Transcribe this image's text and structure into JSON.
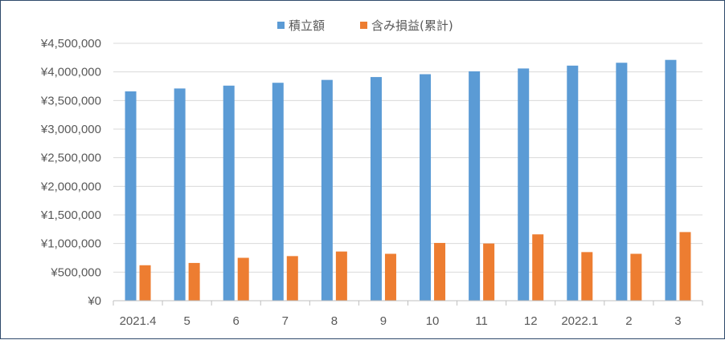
{
  "chart_data": {
    "type": "bar",
    "categories": [
      "2021.4",
      "5",
      "6",
      "7",
      "8",
      "9",
      "10",
      "11",
      "12",
      "2022.1",
      "2",
      "3"
    ],
    "series": [
      {
        "name": "積立額",
        "color": "#5b9bd5",
        "values": [
          3660000,
          3710000,
          3760000,
          3810000,
          3860000,
          3910000,
          3960000,
          4010000,
          4060000,
          4110000,
          4160000,
          4210000
        ]
      },
      {
        "name": "含み損益(累計)",
        "color": "#ed7d31",
        "values": [
          620000,
          660000,
          750000,
          780000,
          860000,
          820000,
          1010000,
          1000000,
          1160000,
          850000,
          820000,
          1200000
        ]
      }
    ],
    "yticks": [
      "¥0",
      "¥500,000",
      "¥1,000,000",
      "¥1,500,000",
      "¥2,000,000",
      "¥2,500,000",
      "¥3,000,000",
      "¥3,500,000",
      "¥4,000,000",
      "¥4,500,000"
    ],
    "ylim": [
      0,
      4500000
    ],
    "grid": true,
    "legend_position": "top-center",
    "title": "",
    "xlabel": "",
    "ylabel": ""
  }
}
